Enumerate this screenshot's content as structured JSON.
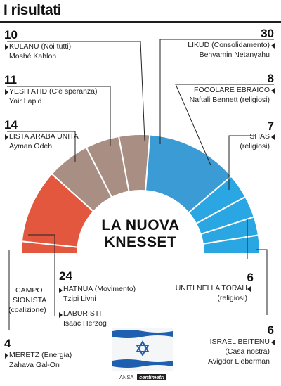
{
  "header": {
    "title": "I risultati"
  },
  "center": {
    "line1": "LA NUOVA",
    "line2": "KNESSET"
  },
  "colors": {
    "left_red": "#e2573d",
    "mid_brown": "#a98e83",
    "likud_blue": "#3b9bd4",
    "right_blue": "#2aa6e2",
    "separator": "#ffffff"
  },
  "chart_data": {
    "type": "pie",
    "shape": "half-donut",
    "title": "LA NUOVA KNESSET",
    "series": [
      {
        "name": "MERETZ (Energia)",
        "value": 4,
        "color": "#e2573d"
      },
      {
        "name": "CAMPO SIONISTA (coalizione)",
        "value": 24,
        "color": "#e2573d"
      },
      {
        "name": "LISTA ARABA UNITA",
        "value": 14,
        "color": "#a98e83"
      },
      {
        "name": "YESH ATID (C'è speranza)",
        "value": 11,
        "color": "#a98e83"
      },
      {
        "name": "KULANU (Noi tutti)",
        "value": 10,
        "color": "#a98e83"
      },
      {
        "name": "LIKUD (Consolidamento)",
        "value": 30,
        "color": "#3b9bd4"
      },
      {
        "name": "FOCOLARE EBRAICO",
        "value": 8,
        "color": "#2aa6e2"
      },
      {
        "name": "SHAS",
        "value": 7,
        "color": "#2aa6e2"
      },
      {
        "name": "UNITI NELLA TORAH",
        "value": 6,
        "color": "#2aa6e2"
      },
      {
        "name": "ISRAEL BEITENU (Casa nostra)",
        "value": 6,
        "color": "#2aa6e2"
      }
    ]
  },
  "labels": {
    "kulanu": {
      "num": "10",
      "name": "KULANU (Noi tutti)",
      "leader": "Moshé Kahlon"
    },
    "yesh_atid": {
      "num": "11",
      "name": "YESH ATID (C'è speranza)",
      "leader": "Yair Lapid"
    },
    "lista_araba": {
      "num": "14",
      "name": "LISTA ARABA UNITA",
      "leader": "Ayman Odeh"
    },
    "likud": {
      "num": "30",
      "name": "LIKUD (Consolidamento)",
      "leader": "Benyamin Netanyahu"
    },
    "focolare": {
      "num": "8",
      "name": "FOCOLARE EBRAICO",
      "leader": "Naftali Bennett (religiosi)"
    },
    "shas": {
      "num": "7",
      "name": "SHAS",
      "note": "(religiosi)"
    },
    "campo": {
      "num": "24",
      "group1": "CAMPO",
      "group2": "SIONISTA",
      "group3": "(coalizione)",
      "hatnua": "HATNUA (Movimento)",
      "hatnua_leader": "Tzipi Livni",
      "laburisti": "LABURISTI",
      "laburisti_leader": "Isaac Herzog"
    },
    "uniti": {
      "num": "6",
      "name": "UNITI NELLA TORAH",
      "note": "(religiosi)"
    },
    "meretz": {
      "num": "4",
      "name": "MERETZ (Energia)",
      "leader": "Zahava Gal-On"
    },
    "israel": {
      "num": "6",
      "name": "ISRAEL BEITENU",
      "note": "(Casa nostra)",
      "leader": "Avigdor Lieberman"
    }
  },
  "footer": {
    "agency": "ANSA",
    "logo": "centimetri"
  }
}
